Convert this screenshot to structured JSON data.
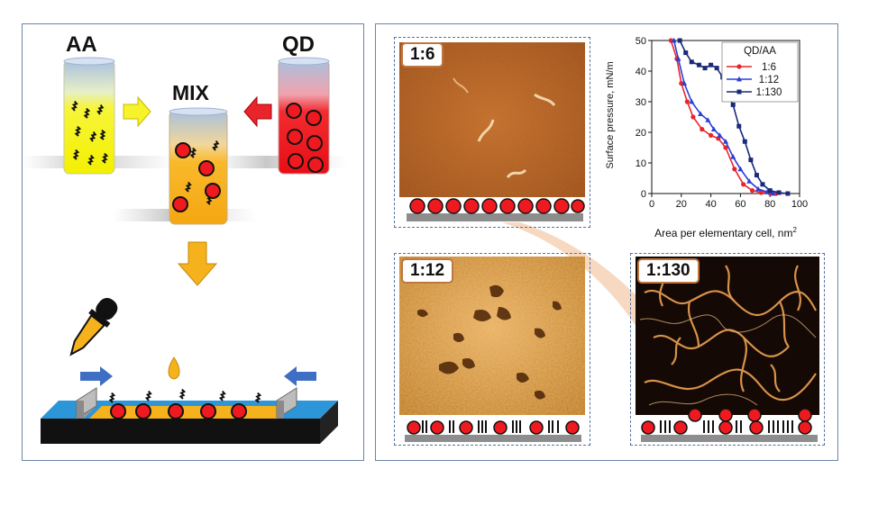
{
  "left": {
    "label_aa": "AA",
    "label_qd": "QD",
    "label_mix": "MIX"
  },
  "afm": {
    "r1": "1:6",
    "r2": "1:12",
    "r3": "1:130"
  },
  "chart_data": {
    "type": "line",
    "xlabel": "Area per elementary cell, nm²",
    "ylabel": "Surface pressure, mN/m",
    "xlim": [
      0,
      100
    ],
    "ylim": [
      0,
      50
    ],
    "xticks": [
      0,
      20,
      40,
      60,
      80,
      100
    ],
    "yticks": [
      0,
      10,
      20,
      30,
      40,
      50
    ],
    "legend_title": "QD/AA",
    "legend_position": "top-right",
    "series": [
      {
        "name": "1:6",
        "color": "#e8252b",
        "marker": "circle",
        "x": [
          13,
          17,
          20,
          24,
          28,
          34,
          40,
          45,
          50,
          56,
          62,
          68,
          74,
          80,
          84
        ],
        "y": [
          50,
          44,
          36,
          30,
          25,
          21,
          19,
          18,
          15,
          8,
          3,
          1,
          0.3,
          0.1,
          0
        ]
      },
      {
        "name": "1:12",
        "color": "#2a3fd6",
        "marker": "triangle",
        "x": [
          15,
          18,
          22,
          27,
          33,
          38,
          42,
          46,
          50,
          55,
          60,
          66,
          72,
          78,
          82
        ],
        "y": [
          50,
          44,
          36,
          30,
          26,
          24,
          21,
          19,
          17,
          12,
          8,
          4,
          1.5,
          0.5,
          0
        ]
      },
      {
        "name": "1:130",
        "color": "#1a2a78",
        "marker": "square",
        "x": [
          19,
          23,
          27,
          32,
          36,
          40,
          44,
          48,
          52,
          55,
          59,
          63,
          67,
          71,
          75,
          80,
          86,
          92
        ],
        "y": [
          50,
          46,
          43,
          42,
          41,
          42,
          41,
          38,
          32,
          29,
          22,
          17,
          11,
          6,
          3,
          1,
          0.3,
          0
        ]
      }
    ]
  }
}
